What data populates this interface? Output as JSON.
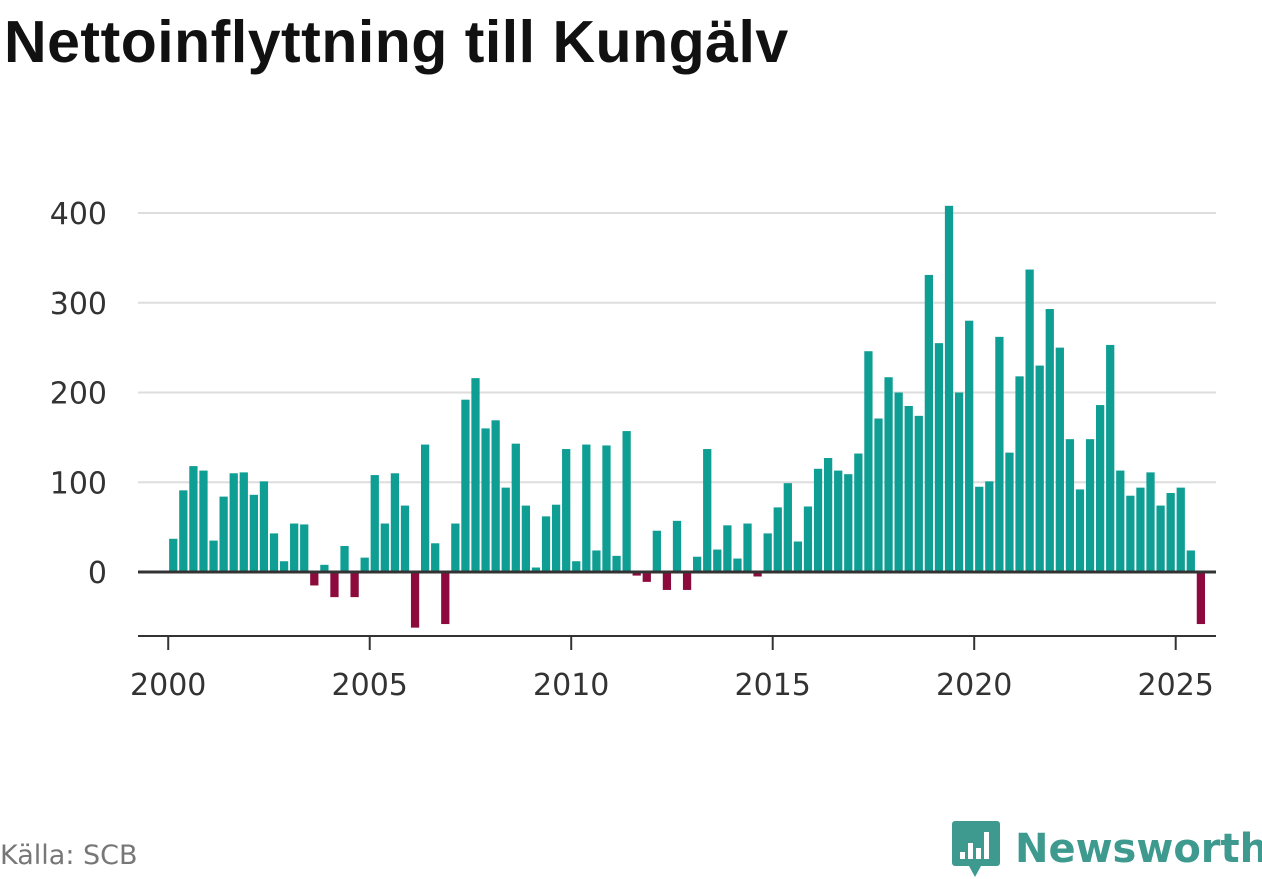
{
  "title": "Nettoinflyttning till Kungälv",
  "source": "Källa: SCB",
  "brand": "Newsworthy",
  "colors": {
    "positive": "#0f9e94",
    "negative": "#8c0a3c",
    "grid": "#dddddd",
    "axis": "#333333",
    "brand": "#3e9a8e"
  },
  "chart_data": {
    "type": "bar",
    "title": "Nettoinflyttning till Kungälv",
    "xlabel": "",
    "ylabel": "",
    "ylim": [
      -65,
      415
    ],
    "xlim": [
      1999.25,
      2026.0
    ],
    "yticks": [
      0,
      100,
      200,
      300,
      400
    ],
    "xticks": [
      2000,
      2005,
      2010,
      2015,
      2020,
      2025
    ],
    "grid": true,
    "frequency": "quarterly",
    "start": [
      2000,
      1
    ],
    "values": [
      37,
      91,
      118,
      113,
      35,
      84,
      110,
      111,
      86,
      101,
      43,
      12,
      54,
      53,
      -15,
      8,
      -28,
      29,
      -28,
      16,
      108,
      54,
      110,
      74,
      -62,
      142,
      32,
      -58,
      54,
      192,
      216,
      160,
      169,
      94,
      143,
      74,
      5,
      62,
      75,
      137,
      12,
      142,
      24,
      141,
      18,
      157,
      -4,
      -11,
      46,
      -20,
      57,
      -20,
      17,
      137,
      25,
      52,
      15,
      54,
      -5,
      43,
      72,
      99,
      34,
      73,
      115,
      127,
      113,
      109,
      132,
      246,
      171,
      217,
      200,
      185,
      174,
      331,
      255,
      408,
      200,
      280,
      95,
      101,
      262,
      133,
      218,
      337,
      230,
      293,
      250,
      148,
      92,
      148,
      186,
      253,
      113,
      85,
      94,
      111,
      74,
      88,
      94,
      24,
      -58
    ]
  }
}
